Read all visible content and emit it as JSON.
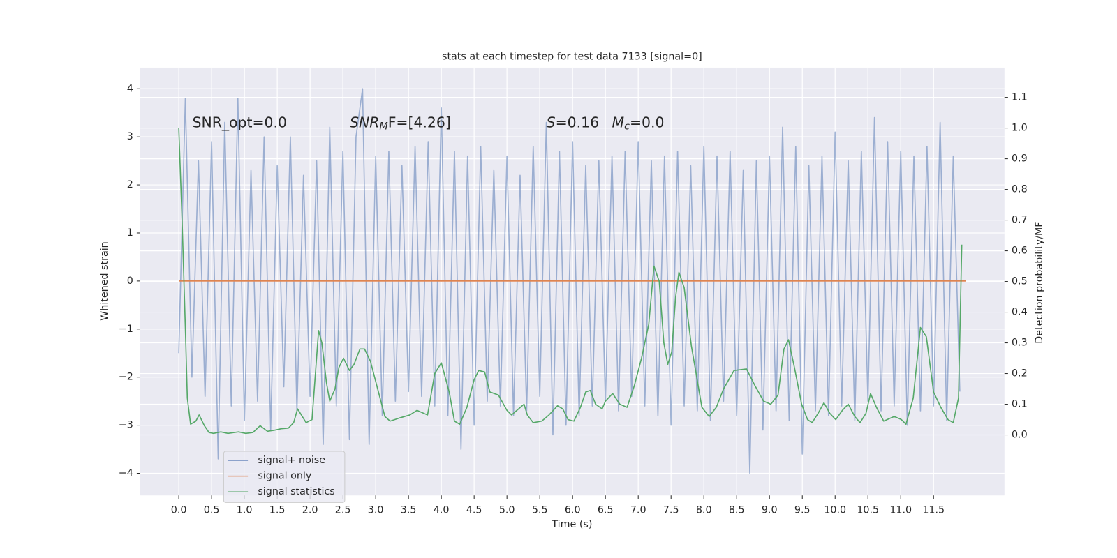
{
  "chart_data": {
    "type": "line",
    "title": "stats at each timestep for test data 7133 [signal=0]",
    "xlabel": "Time (s)",
    "ylabel": "Whitened strain",
    "y2label": "Detection probability/MF",
    "xlim": [
      -0.586,
      12.58
    ],
    "ylim": [
      -4.46,
      4.44
    ],
    "y2lim": [
      -0.197,
      1.197
    ],
    "xticks": [
      {
        "value": 0,
        "label": "0.0"
      },
      0.5,
      {
        "value": 1,
        "label": "1.0"
      },
      1.5,
      {
        "value": 2,
        "label": "2.0"
      },
      2.5,
      {
        "value": 3,
        "label": "3.0"
      },
      3.5,
      {
        "value": 4,
        "label": "4.0"
      },
      4.5,
      {
        "value": 5,
        "label": "5.0"
      },
      5.5,
      {
        "value": 6,
        "label": "6.0"
      },
      6.5,
      {
        "value": 7,
        "label": "7.0"
      },
      7.5,
      {
        "value": 8,
        "label": "8.0"
      },
      8.5,
      {
        "value": 9,
        "label": "9.0"
      },
      9.5,
      {
        "value": 10,
        "label": "10.0"
      },
      10.5,
      {
        "value": 11,
        "label": "11.0"
      },
      11.5
    ],
    "yticks": [
      {
        "value": -4,
        "label": "−4"
      },
      {
        "value": -3,
        "label": "−3"
      },
      {
        "value": -2,
        "label": "−2"
      },
      {
        "value": -1,
        "label": "−1"
      },
      0,
      1,
      2,
      3,
      4
    ],
    "y2ticks": [
      {
        "value": 0,
        "label": "0.0"
      },
      0.1,
      0.2,
      0.3,
      0.4,
      0.5,
      0.6,
      0.7,
      0.8,
      0.9,
      {
        "value": 1,
        "label": "1.0"
      },
      1.1
    ],
    "grid": true,
    "legend": "lower left",
    "annotations": [
      {
        "main": "SNR_opt=0.0"
      },
      {
        "main": "SNR",
        "sub": "M",
        "tail": "F=[4.26]"
      },
      {
        "main": "S",
        "tail": "=0.16"
      },
      {
        "main": "M",
        "sub": "c",
        "tail": "=0.0"
      }
    ],
    "series": [
      {
        "name": "signal+ noise",
        "color": "#4c72b0",
        "x": [
          0.0,
          0.1,
          0.2,
          0.3,
          0.4,
          0.5,
          0.6,
          0.7,
          0.8,
          0.9,
          1.0,
          1.1,
          1.2,
          1.3,
          1.4,
          1.5,
          1.6,
          1.7,
          1.8,
          1.9,
          2.0,
          2.1,
          2.2,
          2.3,
          2.4,
          2.5,
          2.6,
          2.7,
          2.8,
          2.9,
          3.0,
          3.1,
          3.2,
          3.3,
          3.4,
          3.5,
          3.6,
          3.7,
          3.8,
          3.9,
          4.0,
          4.1,
          4.2,
          4.3,
          4.4,
          4.5,
          4.6,
          4.7,
          4.8,
          4.9,
          5.0,
          5.1,
          5.2,
          5.3,
          5.4,
          5.5,
          5.6,
          5.7,
          5.8,
          5.9,
          6.0,
          6.1,
          6.2,
          6.3,
          6.4,
          6.5,
          6.6,
          6.7,
          6.8,
          6.9,
          7.0,
          7.1,
          7.2,
          7.3,
          7.4,
          7.5,
          7.6,
          7.7,
          7.8,
          7.9,
          8.0,
          8.1,
          8.2,
          8.3,
          8.4,
          8.5,
          8.6,
          8.7,
          8.8,
          8.9,
          9.0,
          9.1,
          9.2,
          9.3,
          9.4,
          9.5,
          9.6,
          9.7,
          9.8,
          9.9,
          10.0,
          10.1,
          10.2,
          10.3,
          10.4,
          10.5,
          10.6,
          10.7,
          10.8,
          10.9,
          11.0,
          11.1,
          11.2,
          11.3,
          11.4,
          11.5,
          11.6,
          11.7,
          11.8,
          11.9
        ],
        "values": [
          -1.5,
          3.8,
          -2.0,
          2.5,
          -2.4,
          2.9,
          -3.7,
          3.3,
          -2.6,
          3.8,
          -2.9,
          2.3,
          -2.5,
          3.0,
          -3.1,
          2.4,
          -2.2,
          3.0,
          -2.7,
          2.2,
          -2.4,
          2.5,
          -3.4,
          3.2,
          -2.6,
          2.7,
          -3.3,
          3.0,
          4.0,
          -3.4,
          2.6,
          -2.8,
          2.7,
          -2.5,
          2.4,
          -2.3,
          2.8,
          -2.4,
          2.9,
          -2.6,
          3.6,
          -2.8,
          2.7,
          -3.5,
          2.6,
          -3.0,
          2.8,
          -2.5,
          2.3,
          -2.6,
          2.6,
          -2.8,
          2.2,
          -2.7,
          2.8,
          -2.4,
          3.3,
          -3.2,
          2.7,
          -3.0,
          2.9,
          -2.8,
          2.4,
          -2.6,
          2.5,
          -2.5,
          2.6,
          -2.7,
          2.7,
          -2.4,
          2.9,
          -2.6,
          2.5,
          -2.8,
          2.6,
          -3.0,
          2.7,
          -2.6,
          2.4,
          -2.7,
          2.8,
          -2.9,
          2.6,
          -2.5,
          2.7,
          -2.8,
          2.3,
          -4.0,
          2.5,
          -3.1,
          2.6,
          -2.7,
          3.2,
          -2.9,
          2.8,
          -3.6,
          2.4,
          -2.7,
          2.6,
          -2.8,
          3.1,
          -2.6,
          2.5,
          -2.9,
          2.7,
          -2.5,
          3.4,
          -2.7,
          2.9,
          -2.6,
          2.7,
          -3.0,
          2.6,
          -2.7,
          2.8,
          -2.6,
          3.3,
          -2.9,
          2.6,
          -2.3
        ]
      },
      {
        "name": "signal only",
        "color": "#dd8452",
        "x": [
          0.0,
          11.99
        ],
        "values": [
          0,
          0
        ]
      },
      {
        "name": "signal statistics",
        "color": "#55a868",
        "axis": "y2",
        "x": [
          0.0,
          0.05,
          0.1,
          0.13,
          0.18,
          0.26,
          0.31,
          0.39,
          0.46,
          0.53,
          0.64,
          0.75,
          0.91,
          1.02,
          1.13,
          1.24,
          1.35,
          1.45,
          1.56,
          1.67,
          1.75,
          1.81,
          1.94,
          2.03,
          2.13,
          2.18,
          2.25,
          2.3,
          2.38,
          2.44,
          2.51,
          2.6,
          2.67,
          2.76,
          2.83,
          2.92,
          3.03,
          3.14,
          3.22,
          3.36,
          3.52,
          3.63,
          3.79,
          3.9,
          4.0,
          4.12,
          4.2,
          4.28,
          4.39,
          4.5,
          4.57,
          4.66,
          4.74,
          4.87,
          5.0,
          5.07,
          5.15,
          5.26,
          5.31,
          5.4,
          5.53,
          5.64,
          5.77,
          5.85,
          5.93,
          6.02,
          6.12,
          6.2,
          6.27,
          6.35,
          6.45,
          6.5,
          6.61,
          6.72,
          6.83,
          6.94,
          7.05,
          7.16,
          7.24,
          7.32,
          7.39,
          7.45,
          7.51,
          7.57,
          7.62,
          7.7,
          7.81,
          7.97,
          8.08,
          8.19,
          8.3,
          8.46,
          8.65,
          8.78,
          8.91,
          9.02,
          9.13,
          9.22,
          9.29,
          9.38,
          9.49,
          9.58,
          9.65,
          9.74,
          9.83,
          9.92,
          10.01,
          10.11,
          10.2,
          10.3,
          10.38,
          10.47,
          10.54,
          10.63,
          10.74,
          10.9,
          11.01,
          11.08,
          11.19,
          11.3,
          11.39,
          11.5,
          11.61,
          11.72,
          11.8,
          11.88,
          11.93
        ],
        "values": [
          1.0,
          0.7,
          0.35,
          0.12,
          0.035,
          0.045,
          0.065,
          0.03,
          0.008,
          0.005,
          0.01,
          0.005,
          0.01,
          0.005,
          0.008,
          0.03,
          0.012,
          0.015,
          0.02,
          0.022,
          0.04,
          0.085,
          0.04,
          0.05,
          0.34,
          0.3,
          0.17,
          0.11,
          0.15,
          0.22,
          0.25,
          0.21,
          0.23,
          0.28,
          0.28,
          0.24,
          0.15,
          0.06,
          0.045,
          0.055,
          0.065,
          0.08,
          0.065,
          0.2,
          0.235,
          0.14,
          0.045,
          0.035,
          0.09,
          0.18,
          0.21,
          0.205,
          0.14,
          0.13,
          0.08,
          0.065,
          0.08,
          0.1,
          0.065,
          0.04,
          0.045,
          0.065,
          0.095,
          0.085,
          0.05,
          0.045,
          0.09,
          0.14,
          0.145,
          0.1,
          0.085,
          0.11,
          0.135,
          0.1,
          0.09,
          0.16,
          0.25,
          0.36,
          0.55,
          0.5,
          0.3,
          0.23,
          0.27,
          0.45,
          0.53,
          0.48,
          0.29,
          0.09,
          0.06,
          0.09,
          0.15,
          0.21,
          0.215,
          0.16,
          0.11,
          0.1,
          0.13,
          0.28,
          0.31,
          0.22,
          0.1,
          0.05,
          0.04,
          0.07,
          0.105,
          0.07,
          0.05,
          0.08,
          0.1,
          0.06,
          0.04,
          0.07,
          0.135,
          0.09,
          0.045,
          0.06,
          0.05,
          0.035,
          0.12,
          0.35,
          0.32,
          0.14,
          0.09,
          0.05,
          0.04,
          0.12,
          0.62
        ]
      }
    ]
  }
}
